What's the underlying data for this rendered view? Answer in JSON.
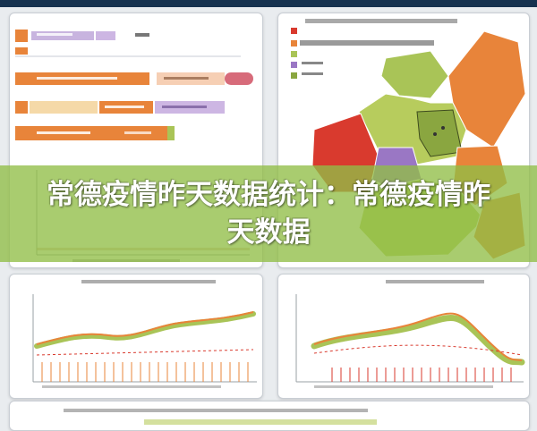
{
  "banner": {
    "title": "常德疫情昨天数据统计：常德疫情昨天数据"
  },
  "colors": {
    "header_bar": "#16324f",
    "banner_green": "#91be46",
    "orange": "#e8843a",
    "red": "#d93a2e",
    "green": "#a9c457",
    "purple": "#9a77c4",
    "olive": "#8aa640"
  },
  "images": {
    "watermark_note": "All small label text in the screenshot is blurred and illegible; it is reproduced as decorative glyph strokes."
  }
}
